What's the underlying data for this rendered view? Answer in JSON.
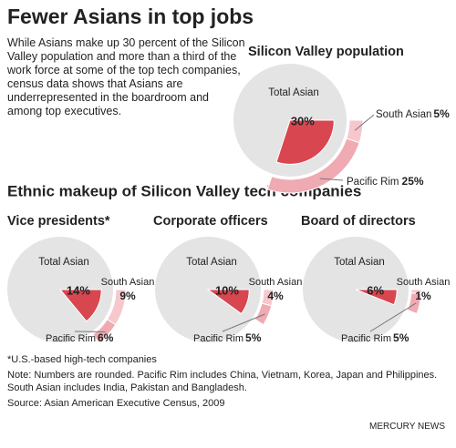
{
  "title": "Fewer Asians in top jobs",
  "intro": "While Asians make up 30 percent of the Silicon Valley population and more than a third of the work force at some of the top tech companies, census data shows that Asians are underrepresented in the boardroom and among top executives.",
  "section_title": "Ethnic makeup of Silicon Valley tech companies",
  "chart_data": [
    {
      "type": "pie",
      "title": "Silicon Valley population",
      "total": {
        "name": "Total Asian",
        "value": 30,
        "value_label": "30%"
      },
      "categories": [
        "South Asian",
        "Pacific Rim"
      ],
      "values": [
        5,
        25
      ],
      "value_labels": [
        "5%",
        "25%"
      ]
    },
    {
      "type": "pie",
      "title": "Vice presidents*",
      "total": {
        "name": "Total Asian",
        "value": 14,
        "value_label": "14%"
      },
      "categories": [
        "South Asian",
        "Pacific Rim"
      ],
      "values": [
        9,
        6
      ],
      "value_labels": [
        "9%",
        "6%"
      ]
    },
    {
      "type": "pie",
      "title": "Corporate officers",
      "total": {
        "name": "Total Asian",
        "value": 10,
        "value_label": "10%"
      },
      "categories": [
        "South Asian",
        "Pacific Rim"
      ],
      "values": [
        4,
        5
      ],
      "value_labels": [
        "4%",
        "5%"
      ]
    },
    {
      "type": "pie",
      "title": "Board of directors",
      "total": {
        "name": "Total Asian",
        "value": 6,
        "value_label": "6%"
      },
      "categories": [
        "South Asian",
        "Pacific Rim"
      ],
      "values": [
        1,
        5
      ],
      "value_labels": [
        "1%",
        "5%"
      ]
    }
  ],
  "notes": [
    "*U.S.-based high-tech companies",
    "Note: Numbers are rounded. Pacific Rim includes China, Vietnam, Korea, Japan and Philippines. South Asian includes India, Pakistan and Bangladesh.",
    "Source: Asian American Executive Census, 2009"
  ],
  "credit": "MERCURY NEWS"
}
